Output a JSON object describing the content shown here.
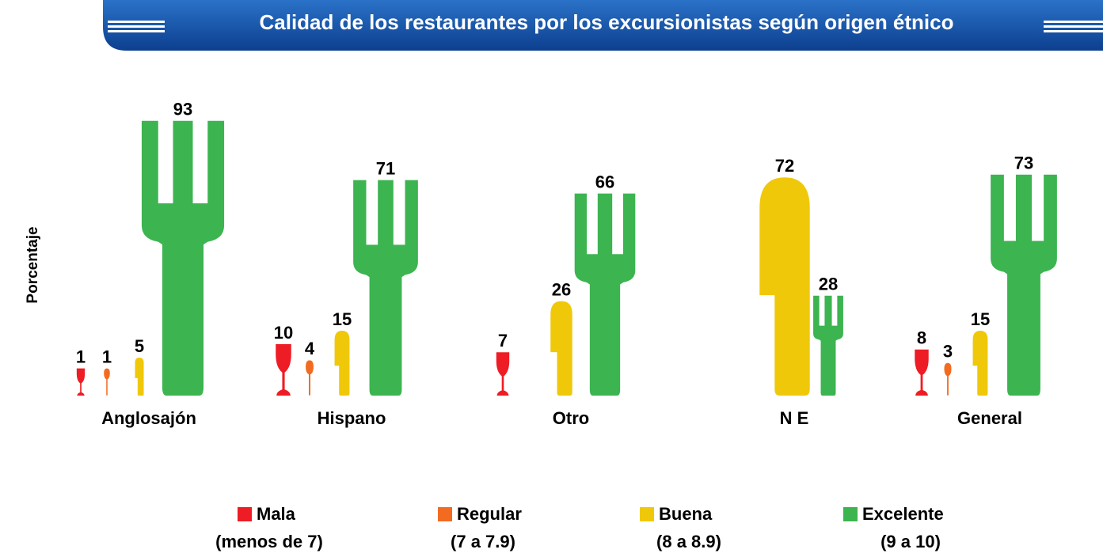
{
  "chart_data": {
    "type": "pictograph",
    "title": "Calidad de los restaurantes por los excursionistas según origen étnico",
    "y_label": "Porcentaje",
    "categories": [
      "Anglosajón",
      "Hispano",
      "Otro",
      "N E",
      "General"
    ],
    "series": [
      {
        "name": "Mala",
        "range": "(menos de 7)",
        "icon": "glass",
        "color": "#ee1c24",
        "values": [
          1,
          10,
          7,
          null,
          8
        ]
      },
      {
        "name": "Regular",
        "range": "(7 a 7.9)",
        "icon": "spoon",
        "color": "#f26b21",
        "values": [
          1,
          4,
          null,
          null,
          3
        ]
      },
      {
        "name": "Buena",
        "range": "(8 a 8.9)",
        "icon": "knife",
        "color": "#f0c80a",
        "values": [
          5,
          15,
          26,
          72,
          15
        ]
      },
      {
        "name": "Excelente",
        "range": "(9 a 10)",
        "icon": "fork",
        "color": "#3cb450",
        "values": [
          93,
          71,
          66,
          28,
          73
        ]
      }
    ]
  }
}
